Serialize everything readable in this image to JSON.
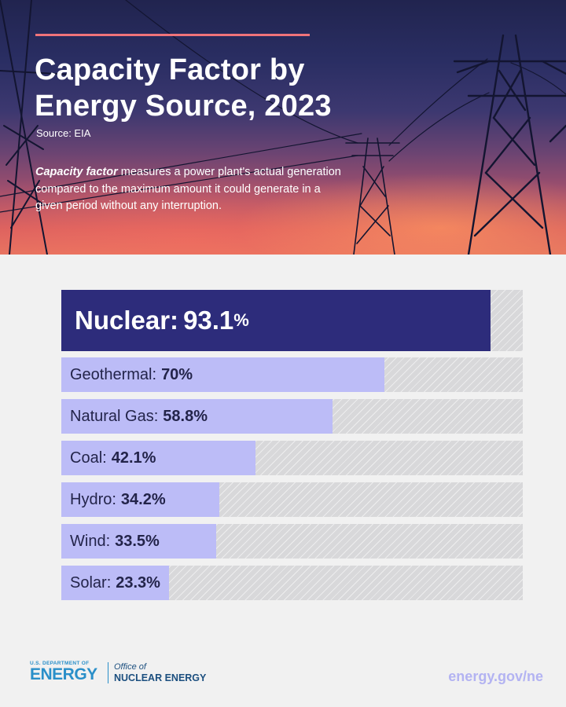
{
  "header": {
    "title_line1": "Capacity Factor by",
    "title_line2": "Energy Source, 2023",
    "source": "Source: EIA",
    "description_term": "Capacity factor",
    "description_rest": " measures a power plant's actual generation compared to the maximum amount it could generate in a given period without any interruption."
  },
  "chart_data": {
    "type": "bar",
    "orientation": "horizontal",
    "title": "Capacity Factor by Energy Source, 2023",
    "categories": [
      "Nuclear",
      "Geothermal",
      "Natural Gas",
      "Coal",
      "Hydro",
      "Wind",
      "Solar"
    ],
    "values": [
      93.1,
      70,
      58.8,
      42.1,
      34.2,
      33.5,
      23.3
    ],
    "value_labels": [
      "93.1",
      "70%",
      "58.8%",
      "42.1%",
      "34.2%",
      "33.5%",
      "23.3%"
    ],
    "unit": "%",
    "xlim": [
      0,
      100
    ],
    "highlight": "Nuclear",
    "colors": {
      "highlight": "#2d2c7b",
      "bar": "#bcbcf7",
      "track": "#d8d8da"
    }
  },
  "footer": {
    "agency_small": "U.S. DEPARTMENT OF",
    "agency_big": "ENERGY",
    "office_line1": "Office of",
    "office_line2": "NUCLEAR ENERGY",
    "url": "energy.gov/ne"
  },
  "colors": {
    "accent": "#f0737a",
    "brand_blue": "#2a8fc9",
    "navy": "#2d2c7b",
    "lavender": "#bcbcf7"
  }
}
